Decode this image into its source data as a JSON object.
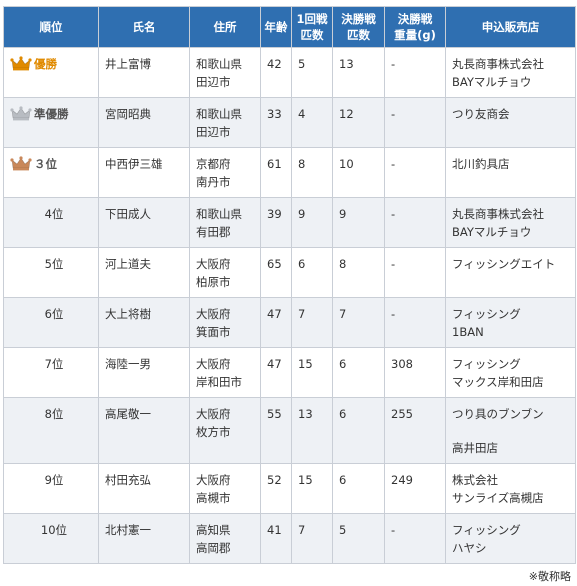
{
  "table": {
    "headers": [
      [
        "順位"
      ],
      [
        "氏名"
      ],
      [
        "住所"
      ],
      [
        "年齢"
      ],
      [
        "1回戦",
        "匹数"
      ],
      [
        "決勝戦",
        "匹数"
      ],
      [
        "決勝戦",
        "重量(g)"
      ],
      [
        "申込販売店"
      ]
    ],
    "rows": [
      {
        "rank": "優勝",
        "medal": "gold",
        "name": "井上富博",
        "address": [
          "和歌山県",
          "田辺市"
        ],
        "age": "42",
        "round1": "5",
        "final_count": "13",
        "final_weight": "-",
        "shop": [
          "丸長商事株式会社",
          "BAYマルチョウ"
        ]
      },
      {
        "rank": "準優勝",
        "medal": "silver",
        "name": "宮岡昭典",
        "address": [
          "和歌山県",
          "田辺市"
        ],
        "age": "33",
        "round1": "4",
        "final_count": "12",
        "final_weight": "-",
        "shop": [
          "つり友商会"
        ]
      },
      {
        "rank": "３位",
        "medal": "bronze",
        "name": "中西伊三雄",
        "address": [
          "京都府",
          "南丹市"
        ],
        "age": "61",
        "round1": "8",
        "final_count": "10",
        "final_weight": "-",
        "shop": [
          "北川釣具店"
        ]
      },
      {
        "rank": "4位",
        "medal": "",
        "name": "下田成人",
        "address": [
          "和歌山県",
          "有田郡"
        ],
        "age": "39",
        "round1": "9",
        "final_count": "9",
        "final_weight": "-",
        "shop": [
          "丸長商事株式会社",
          "BAYマルチョウ"
        ]
      },
      {
        "rank": "5位",
        "medal": "",
        "name": "河上道夫",
        "address": [
          "大阪府",
          "柏原市"
        ],
        "age": "65",
        "round1": "6",
        "final_count": "8",
        "final_weight": "-",
        "shop": [
          "フィッシングエイト"
        ]
      },
      {
        "rank": "6位",
        "medal": "",
        "name": "大上将樹",
        "address": [
          "大阪府",
          "箕面市"
        ],
        "age": "47",
        "round1": "7",
        "final_count": "7",
        "final_weight": "-",
        "shop": [
          "フィッシング",
          "1BAN"
        ]
      },
      {
        "rank": "7位",
        "medal": "",
        "name": "海陸一男",
        "address": [
          "大阪府",
          "岸和田市"
        ],
        "age": "47",
        "round1": "15",
        "final_count": "6",
        "final_weight": "308",
        "shop": [
          "フィッシング",
          "マックス岸和田店"
        ]
      },
      {
        "rank": "8位",
        "medal": "",
        "name": "高尾敬一",
        "address": [
          "大阪府",
          "枚方市"
        ],
        "age": "55",
        "round1": "13",
        "final_count": "6",
        "final_weight": "255",
        "shop": [
          "つり具のブンブン",
          "",
          "高井田店"
        ]
      },
      {
        "rank": "9位",
        "medal": "",
        "name": "村田充弘",
        "address": [
          "大阪府",
          "高槻市"
        ],
        "age": "52",
        "round1": "15",
        "final_count": "6",
        "final_weight": "249",
        "shop": [
          "株式会社",
          "サンライズ高槻店"
        ]
      },
      {
        "rank": "10位",
        "medal": "",
        "name": "北村憲一",
        "address": [
          "高知県",
          "高岡郡"
        ],
        "age": "41",
        "round1": "7",
        "final_count": "5",
        "final_weight": "-",
        "shop": [
          "フィッシング",
          "ハヤシ"
        ]
      }
    ]
  },
  "colors": {
    "header_bg": "#2f6fb1",
    "stripe_bg": "#eef1f5",
    "gold": "#e08a00",
    "silver": "#b8bcc2",
    "bronze": "#c9885a"
  },
  "footnote": "※敬称略"
}
